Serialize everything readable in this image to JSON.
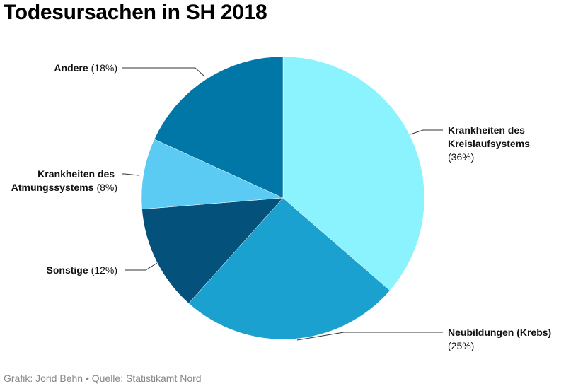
{
  "title": "Todesursachen in SH 2018",
  "footer": "Grafik: Jorid Behn • Quelle: Statistikamt Nord",
  "chart_data": {
    "type": "pie",
    "title": "Todesursachen in SH 2018",
    "start_angle_deg": 0,
    "direction": "clockwise",
    "slices": [
      {
        "key": "kreislauf",
        "name": "Krankheiten des Kreislaufsystems",
        "label_lines": [
          "Krankheiten des",
          "Kreislaufsystems"
        ],
        "pct_text": "(36%)",
        "value": 36,
        "color": "#8af3fe"
      },
      {
        "key": "neubildungen",
        "name": "Neubildungen (Krebs)",
        "label_lines": [
          "Neubildungen (Krebs)"
        ],
        "pct_text": "(25%)",
        "value": 25,
        "color": "#1ba1cf"
      },
      {
        "key": "sonstige",
        "name": "Sonstige",
        "label_lines": [
          "Sonstige"
        ],
        "pct_text": "(12%)",
        "value": 12,
        "color": "#04527c"
      },
      {
        "key": "atmung",
        "name": "Krankheiten des Atmungssystems",
        "label_lines": [
          "Krankheiten des",
          "Atmungssystems"
        ],
        "pct_text": "(8%)",
        "value": 8,
        "color": "#5ccbf4"
      },
      {
        "key": "andere",
        "name": "Andere",
        "label_lines": [
          "Andere"
        ],
        "pct_text": "(18%)",
        "value": 18,
        "color": "#0077a6"
      }
    ]
  }
}
